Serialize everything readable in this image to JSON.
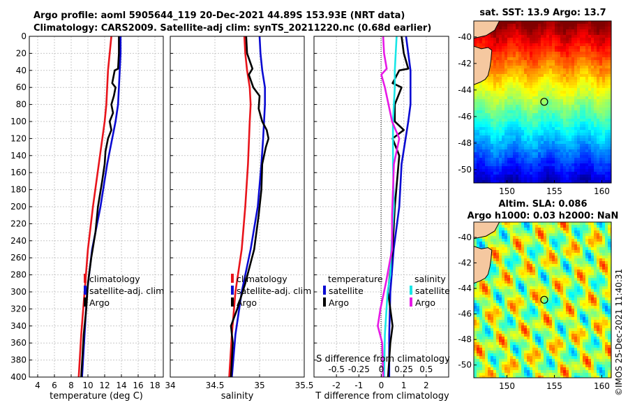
{
  "header": {
    "title_line1": "Argo profile: aoml 5905644_119 20-Dec-2021 44.89S 153.93E (NRT data)",
    "title_line2": "Climatology: CARS2009. Satellite-adj clim: synTS_20211220.nc (0.68d earlier)"
  },
  "colors": {
    "climatology": "#e8141b",
    "satellite": "#0a0ad2",
    "argo": "#000000",
    "salinity_satellite": "#19e6e6",
    "salinity_argo": "#e619e6"
  },
  "chart_data": [
    {
      "type": "line",
      "name": "temperature-profile",
      "xlabel": "temperature (deg C)",
      "ylabel": "",
      "xlim": [
        3,
        19
      ],
      "ylim": [
        400,
        0
      ],
      "xticks": [
        4,
        6,
        8,
        10,
        12,
        14,
        16,
        18
      ],
      "yticks": [
        0,
        20,
        40,
        60,
        80,
        100,
        120,
        140,
        160,
        180,
        200,
        220,
        240,
        260,
        280,
        300,
        320,
        340,
        360,
        380,
        400
      ],
      "legend": [
        "climatology",
        "satellite-adj. clim",
        "Argo"
      ],
      "legend_position": "bottom-center",
      "series": [
        {
          "name": "climatology",
          "depth": [
            0,
            20,
            40,
            60,
            80,
            100,
            150,
            200,
            250,
            300,
            350,
            400
          ],
          "values": [
            12.8,
            12.6,
            12.4,
            12.3,
            12.2,
            12.0,
            11.3,
            10.6,
            10.0,
            9.6,
            9.2,
            8.9
          ]
        },
        {
          "name": "satellite-adj. clim",
          "depth": [
            0,
            20,
            40,
            60,
            80,
            100,
            120,
            150,
            200,
            250,
            300,
            350,
            400
          ],
          "values": [
            13.9,
            13.9,
            13.8,
            13.7,
            13.6,
            13.3,
            12.9,
            12.3,
            11.5,
            10.5,
            9.9,
            9.6,
            9.3
          ]
        },
        {
          "name": "Argo",
          "depth": [
            0,
            20,
            38,
            40,
            55,
            60,
            70,
            80,
            90,
            100,
            110,
            120,
            135,
            150,
            170,
            200,
            230,
            260,
            290,
            320,
            350,
            400
          ],
          "values": [
            13.7,
            13.7,
            13.6,
            13.2,
            12.9,
            13.3,
            13.1,
            12.8,
            13.0,
            12.6,
            12.8,
            12.4,
            12.1,
            12.0,
            11.7,
            11.2,
            10.9,
            10.4,
            10.0,
            9.8,
            9.5,
            9.2
          ]
        }
      ]
    },
    {
      "type": "line",
      "name": "salinity-profile",
      "xlabel": "salinity",
      "xlim": [
        34,
        35.5
      ],
      "ylim": [
        400,
        0
      ],
      "xticks": [
        34,
        34.5,
        35,
        35.5
      ],
      "xticklabels": [
        "34",
        "34.5",
        "35",
        "35.5"
      ],
      "legend": [
        "climatology",
        "satellite-adj. clim",
        "Argo"
      ],
      "legend_position": "bottom-center",
      "series": [
        {
          "name": "climatology",
          "depth": [
            0,
            20,
            40,
            60,
            80,
            100,
            150,
            200,
            250,
            300,
            350,
            400
          ],
          "values": [
            34.83,
            34.84,
            34.86,
            34.89,
            34.9,
            34.89,
            34.87,
            34.84,
            34.8,
            34.73,
            34.69,
            34.66
          ]
        },
        {
          "name": "satellite-adj. clim",
          "depth": [
            0,
            20,
            40,
            60,
            80,
            100,
            120,
            150,
            200,
            250,
            300,
            350,
            400
          ],
          "values": [
            35.0,
            35.01,
            35.03,
            35.06,
            35.06,
            35.05,
            35.04,
            35.02,
            34.98,
            34.9,
            34.8,
            34.73,
            34.69
          ]
        },
        {
          "name": "Argo",
          "depth": [
            0,
            20,
            38,
            45,
            60,
            70,
            85,
            100,
            110,
            120,
            130,
            150,
            180,
            210,
            250,
            290,
            320,
            340,
            360,
            400
          ],
          "values": [
            34.85,
            34.86,
            34.92,
            34.88,
            34.93,
            35.0,
            34.99,
            35.03,
            35.08,
            35.1,
            35.07,
            35.03,
            35.02,
            34.99,
            34.94,
            34.84,
            34.75,
            34.68,
            34.7,
            34.68
          ]
        }
      ]
    },
    {
      "type": "line",
      "name": "difference-profile",
      "xlabel": "T difference from climatology",
      "xlabel_top": "S difference from climatology",
      "xlim": [
        -3,
        3
      ],
      "ylim": [
        400,
        0
      ],
      "xticks": [
        -2,
        -1,
        0,
        1,
        2
      ],
      "xticklabels": [
        "-2",
        "-1",
        "0",
        "1",
        "2"
      ],
      "top_xticklabels": [
        "-0.5",
        "-0.25",
        "0",
        "0.25",
        "0.5"
      ],
      "legend_temperature_title": "temperature",
      "legend_salinity_title": "salinity",
      "legend_temperature": [
        "satellite",
        "Argo"
      ],
      "legend_salinity": [
        "satellite",
        "Argo"
      ],
      "series": [
        {
          "name": "T satellite",
          "depth": [
            0,
            20,
            40,
            60,
            80,
            100,
            150,
            200,
            250,
            300,
            350,
            400
          ],
          "values": [
            1.1,
            1.2,
            1.3,
            1.3,
            1.3,
            1.2,
            0.9,
            0.8,
            0.55,
            0.4,
            0.35,
            0.35
          ]
        },
        {
          "name": "T Argo",
          "depth": [
            0,
            20,
            38,
            40,
            55,
            60,
            80,
            100,
            110,
            120,
            140,
            170,
            200,
            250,
            300,
            340,
            360,
            400
          ],
          "values": [
            0.9,
            1.0,
            1.2,
            0.8,
            0.5,
            0.9,
            0.6,
            0.6,
            1.0,
            0.5,
            0.8,
            0.7,
            0.6,
            0.5,
            0.3,
            0.5,
            0.4,
            0.3
          ]
        },
        {
          "name": "S satellite",
          "depth": [
            0,
            20,
            40,
            60,
            80,
            100,
            150,
            200,
            250,
            280,
            300,
            350,
            400
          ],
          "values": [
            0.17,
            0.16,
            0.15,
            0.15,
            0.14,
            0.13,
            0.13,
            0.14,
            0.11,
            0.1,
            0.07,
            0.04,
            0.03
          ]
        },
        {
          "name": "S Argo",
          "depth": [
            0,
            20,
            38,
            45,
            60,
            80,
            100,
            120,
            150,
            180,
            210,
            250,
            290,
            320,
            340,
            360,
            400
          ],
          "values": [
            0.02,
            0.03,
            0.06,
            0.0,
            0.04,
            0.08,
            0.12,
            0.2,
            0.14,
            0.13,
            0.12,
            0.12,
            0.05,
            -0.01,
            -0.04,
            0.01,
            0.02
          ]
        }
      ]
    },
    {
      "type": "heatmap",
      "name": "sst-map",
      "title": "sat. SST: 13.9 Argo: 13.7",
      "xlim": [
        146.5,
        161
      ],
      "ylim": [
        -51,
        -38.8
      ],
      "xticks": [
        150,
        155,
        160
      ],
      "yticks": [
        -40,
        -42,
        -44,
        -46,
        -48,
        -50
      ],
      "argo_position": [
        153.93,
        -44.89
      ]
    },
    {
      "type": "heatmap",
      "name": "sla-map",
      "title_line1": "Altim. SLA: 0.086",
      "title_line2": "Argo h1000: 0.03 h2000: NaN",
      "xlim": [
        146.5,
        161
      ],
      "ylim": [
        -51,
        -38.8
      ],
      "xticks": [
        150,
        155,
        160
      ],
      "yticks": [
        -40,
        -42,
        -44,
        -46,
        -48,
        -50
      ],
      "argo_position": [
        153.93,
        -44.89
      ]
    }
  ],
  "footer": {
    "credit": "©IMOS 25-Dec-2021 11:40:31"
  }
}
